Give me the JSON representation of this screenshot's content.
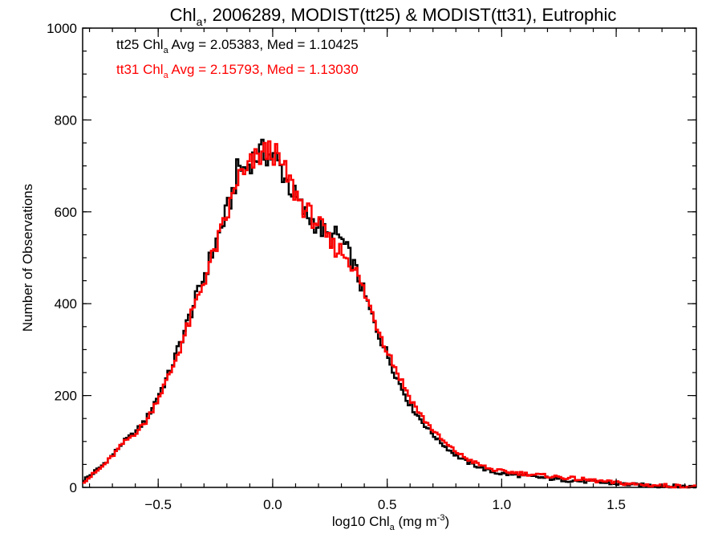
{
  "chart_data": {
    "type": "histogram",
    "title": {
      "prefix": "Chl",
      "sub": "a",
      "rest": ", 2006289, MODIST(tt25) & MODIST(tt31), Eutrophic"
    },
    "xlabel": {
      "prefix": "log10 Chl",
      "sub": "a",
      "rest": " (mg m",
      "sup": "-3",
      "end": ")"
    },
    "ylabel": "Number of Observations",
    "xlim": [
      -0.83,
      1.85
    ],
    "ylim": [
      0,
      1000
    ],
    "xticks": [
      -0.5,
      0.0,
      0.5,
      1.0,
      1.5
    ],
    "xtick_labels": [
      "−0.5",
      "0.0",
      "0.5",
      "1.0",
      "1.5"
    ],
    "yticks": [
      0,
      200,
      400,
      600,
      800,
      1000
    ],
    "ytick_labels": [
      "0",
      "200",
      "400",
      "600",
      "800",
      "1000"
    ],
    "bin_width": 0.01,
    "legend_placement": "top-left",
    "series": [
      {
        "name": "tt25",
        "color": "#000000",
        "legend": {
          "prefix": "tt25 Chl",
          "sub": "a",
          "rest": " Avg = 2.05383, Med = 1.10425"
        },
        "x": [
          -0.83,
          -0.8,
          -0.75,
          -0.7,
          -0.65,
          -0.6,
          -0.55,
          -0.5,
          -0.45,
          -0.4,
          -0.35,
          -0.3,
          -0.25,
          -0.2,
          -0.17,
          -0.15,
          -0.12,
          -0.1,
          -0.05,
          0.0,
          0.02,
          0.05,
          0.1,
          0.15,
          0.2,
          0.25,
          0.28,
          0.3,
          0.32,
          0.35,
          0.4,
          0.45,
          0.5,
          0.55,
          0.6,
          0.65,
          0.7,
          0.75,
          0.8,
          0.85,
          0.9,
          0.95,
          1.0,
          1.1,
          1.2,
          1.3,
          1.4,
          1.5,
          1.6,
          1.7,
          1.8,
          1.85
        ],
        "y": [
          15,
          25,
          45,
          70,
          100,
          120,
          150,
          200,
          250,
          320,
          390,
          460,
          530,
          600,
          650,
          700,
          690,
          710,
          730,
          720,
          710,
          680,
          630,
          590,
          570,
          540,
          550,
          540,
          520,
          490,
          420,
          350,
          290,
          230,
          180,
          145,
          115,
          90,
          70,
          55,
          45,
          35,
          30,
          25,
          20,
          15,
          12,
          8,
          5,
          3,
          2,
          1
        ]
      },
      {
        "name": "tt31",
        "color": "#ff0000",
        "legend": {
          "prefix": "tt31 Chl",
          "sub": "a",
          "rest": " Avg = 2.15793, Med = 1.13030"
        },
        "x": [
          -0.83,
          -0.8,
          -0.75,
          -0.7,
          -0.65,
          -0.6,
          -0.55,
          -0.5,
          -0.45,
          -0.4,
          -0.35,
          -0.3,
          -0.25,
          -0.2,
          -0.17,
          -0.15,
          -0.12,
          -0.1,
          -0.05,
          0.0,
          0.02,
          0.05,
          0.1,
          0.15,
          0.2,
          0.25,
          0.28,
          0.3,
          0.32,
          0.35,
          0.4,
          0.45,
          0.5,
          0.55,
          0.6,
          0.65,
          0.7,
          0.75,
          0.8,
          0.85,
          0.9,
          0.95,
          1.0,
          1.1,
          1.2,
          1.3,
          1.4,
          1.5,
          1.6,
          1.7,
          1.8,
          1.85
        ],
        "y": [
          12,
          22,
          42,
          68,
          98,
          118,
          145,
          195,
          245,
          310,
          380,
          450,
          520,
          590,
          640,
          680,
          675,
          700,
          725,
          735,
          715,
          690,
          640,
          600,
          575,
          530,
          520,
          515,
          505,
          485,
          425,
          360,
          300,
          245,
          195,
          155,
          125,
          98,
          78,
          62,
          50,
          40,
          35,
          30,
          25,
          20,
          15,
          10,
          6,
          4,
          2,
          1
        ]
      }
    ]
  }
}
